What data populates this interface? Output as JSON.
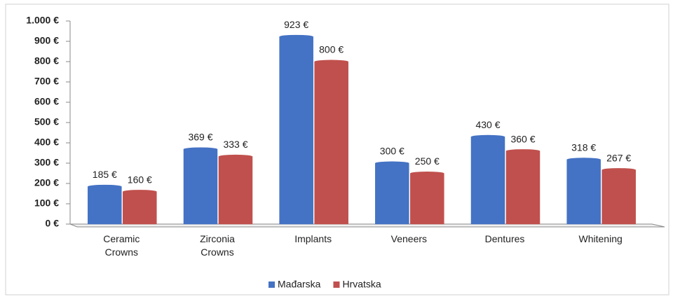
{
  "chart_data": {
    "type": "bar",
    "categories": [
      "Ceramic Crowns",
      "Zirconia Crowns",
      "Implants",
      "Veneers",
      "Dentures",
      "Whitening"
    ],
    "series": [
      {
        "name": "Mađarska",
        "color": "#4472c4",
        "values": [
          185,
          369,
          923,
          300,
          430,
          318
        ],
        "value_labels": [
          "185 €",
          "369 €",
          "923 €",
          "300 €",
          "430 €",
          "318 €"
        ]
      },
      {
        "name": "Hrvatska",
        "color": "#c0504d",
        "values": [
          160,
          333,
          800,
          250,
          360,
          267
        ],
        "value_labels": [
          "160 €",
          "333 €",
          "800 €",
          "250 €",
          "360 €",
          "267 €"
        ]
      }
    ],
    "ylim": [
      0,
      1000
    ],
    "yticks": [
      {
        "value": 0,
        "label": "0 €"
      },
      {
        "value": 100,
        "label": "100 €"
      },
      {
        "value": 200,
        "label": "200 €"
      },
      {
        "value": 300,
        "label": "300 €"
      },
      {
        "value": 400,
        "label": "400 €"
      },
      {
        "value": 500,
        "label": "500 €"
      },
      {
        "value": 600,
        "label": "600 €"
      },
      {
        "value": 700,
        "label": "700 €"
      },
      {
        "value": 800,
        "label": "800 €"
      },
      {
        "value": 900,
        "label": "900 €"
      },
      {
        "value": 1000,
        "label": "1.000 €"
      }
    ],
    "legend": "bottom"
  }
}
